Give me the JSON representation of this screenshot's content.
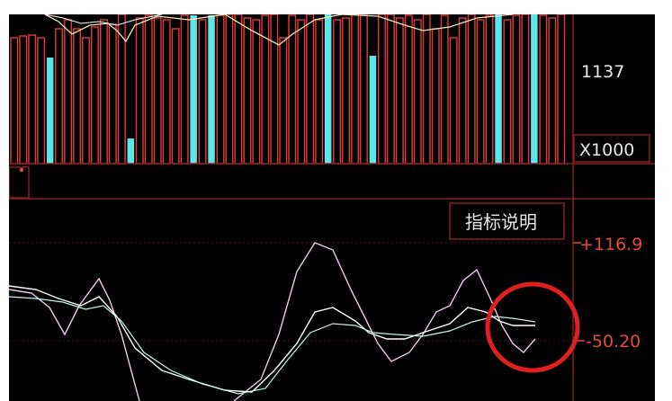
{
  "volume_panel": {
    "axis_value_label": "1137",
    "unit_label": "X1000"
  },
  "indicator_panel": {
    "tooltip_label": "指标说明",
    "axis_top_value": "+116.9",
    "axis_mid_value": "-50.20"
  },
  "colors": {
    "up_bar": "#e23b3b",
    "down_bar": "#5de5ea",
    "line_white": "#ffffff",
    "line_pink": "#f0c8f0",
    "line_cyan": "#c8f4e8",
    "grid_red": "#8a1c1c",
    "highlight_circle": "#e02020"
  },
  "chart_data": {
    "type": "bar",
    "volume_bars": {
      "up_down": [
        "up",
        "up",
        "up",
        "up",
        "down",
        "up",
        "up",
        "up",
        "up",
        "up",
        "up",
        "up",
        "up",
        "down",
        "up",
        "up",
        "up",
        "up",
        "up",
        "up",
        "down",
        "up",
        "down",
        "up",
        "up",
        "up",
        "up",
        "up",
        "up",
        "up",
        "up",
        "up",
        "up",
        "up",
        "up",
        "down",
        "up",
        "up",
        "up",
        "up",
        "down",
        "up",
        "up",
        "up",
        "up",
        "up",
        "up",
        "up",
        "up",
        "up",
        "up",
        "up",
        "up",
        "up",
        "down",
        "up",
        "up",
        "up",
        "down",
        "up",
        "up",
        "up"
      ],
      "unit": "X1000"
    }
  }
}
